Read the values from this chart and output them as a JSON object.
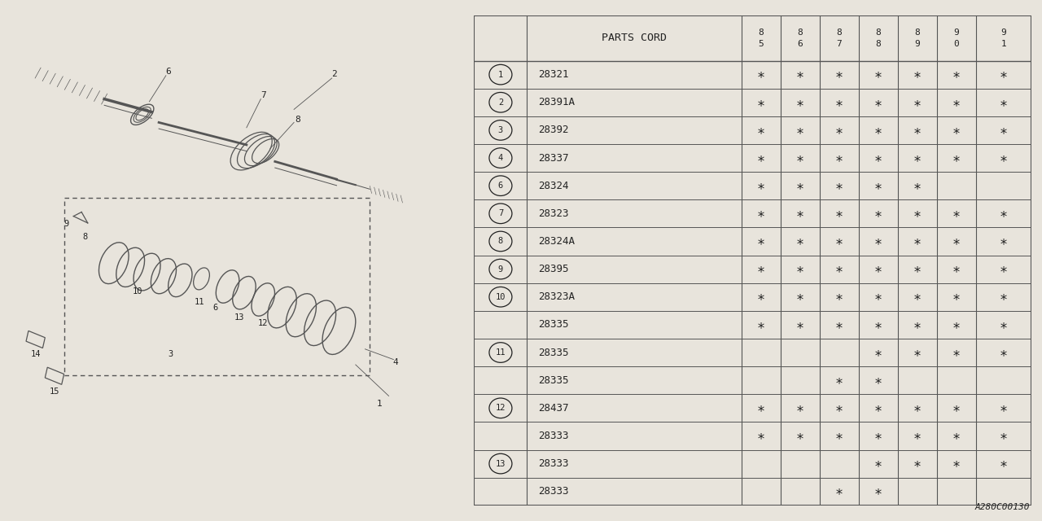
{
  "bg_color": "#e8e4dc",
  "draw_bg": "#e8e4dc",
  "table_bg": "#ffffff",
  "title_code": "A280C00130",
  "header_label": "PARTS CORD",
  "year_labels": [
    [
      "8",
      "5"
    ],
    [
      "8",
      "6"
    ],
    [
      "8",
      "7"
    ],
    [
      "8",
      "8"
    ],
    [
      "8",
      "9"
    ],
    [
      "9",
      "0"
    ],
    [
      "9",
      "1"
    ]
  ],
  "rows": [
    {
      "num": "1",
      "circle": true,
      "code": "28321",
      "marks": [
        1,
        1,
        1,
        1,
        1,
        1,
        1
      ]
    },
    {
      "num": "2",
      "circle": true,
      "code": "28391A",
      "marks": [
        1,
        1,
        1,
        1,
        1,
        1,
        1
      ]
    },
    {
      "num": "3",
      "circle": true,
      "code": "28392",
      "marks": [
        1,
        1,
        1,
        1,
        1,
        1,
        1
      ]
    },
    {
      "num": "4",
      "circle": true,
      "code": "28337",
      "marks": [
        1,
        1,
        1,
        1,
        1,
        1,
        1
      ]
    },
    {
      "num": "6",
      "circle": true,
      "code": "28324",
      "marks": [
        1,
        1,
        1,
        1,
        1,
        0,
        0
      ]
    },
    {
      "num": "7",
      "circle": true,
      "code": "28323",
      "marks": [
        1,
        1,
        1,
        1,
        1,
        1,
        1
      ]
    },
    {
      "num": "8",
      "circle": true,
      "code": "28324A",
      "marks": [
        1,
        1,
        1,
        1,
        1,
        1,
        1
      ]
    },
    {
      "num": "9",
      "circle": true,
      "code": "28395",
      "marks": [
        1,
        1,
        1,
        1,
        1,
        1,
        1
      ]
    },
    {
      "num": "10",
      "circle": true,
      "code": "28323A",
      "marks": [
        1,
        1,
        1,
        1,
        1,
        1,
        1
      ]
    },
    {
      "num": "",
      "circle": false,
      "code": "28335",
      "marks": [
        1,
        1,
        1,
        1,
        1,
        1,
        1
      ]
    },
    {
      "num": "11",
      "circle": true,
      "code": "28335",
      "marks": [
        0,
        0,
        0,
        1,
        1,
        1,
        1
      ]
    },
    {
      "num": "",
      "circle": false,
      "code": "28335",
      "marks": [
        0,
        0,
        1,
        1,
        0,
        0,
        0
      ]
    },
    {
      "num": "12",
      "circle": true,
      "code": "28437",
      "marks": [
        1,
        1,
        1,
        1,
        1,
        1,
        1
      ]
    },
    {
      "num": "",
      "circle": false,
      "code": "28333",
      "marks": [
        1,
        1,
        1,
        1,
        1,
        1,
        1
      ]
    },
    {
      "num": "13",
      "circle": true,
      "code": "28333",
      "marks": [
        0,
        0,
        0,
        1,
        1,
        1,
        1
      ]
    },
    {
      "num": "",
      "circle": false,
      "code": "28333",
      "marks": [
        0,
        0,
        1,
        1,
        0,
        0,
        0
      ]
    }
  ],
  "line_color": "#555555",
  "text_color": "#222222",
  "lw_main": 1.0,
  "lw_thin": 0.6
}
